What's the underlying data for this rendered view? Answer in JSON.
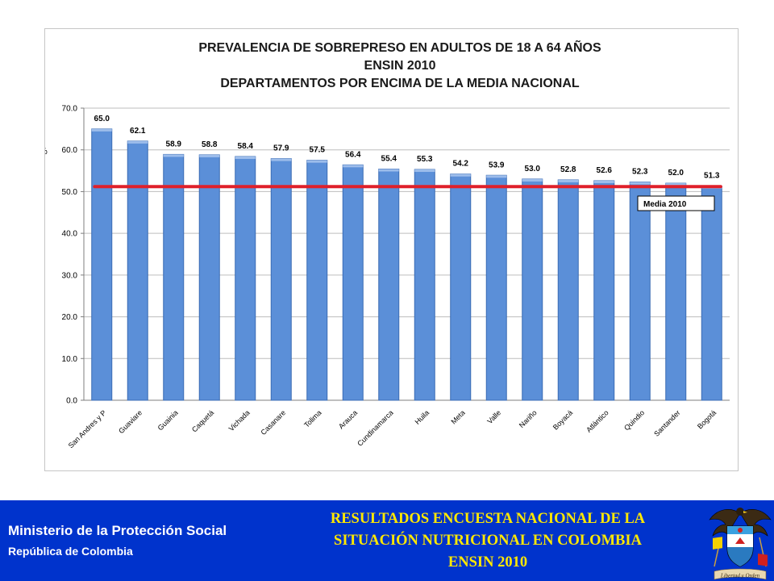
{
  "chart_data": {
    "type": "bar",
    "title": [
      "PREVALENCIA DE SOBREPRESO EN ADULTOS DE 18 A 64 AÑOS",
      "ENSIN 2010",
      "DEPARTAMENTOS POR ENCIMA DE LA MEDIA NACIONAL"
    ],
    "ylabel": "%",
    "xlabel": "",
    "ylim": [
      0,
      70
    ],
    "ytick_labels": [
      "0.0",
      "10.0",
      "20.0",
      "30.0",
      "40.0",
      "50.0",
      "60.0",
      "70.0"
    ],
    "grid": true,
    "categories": [
      "San Andres y P",
      "Guaviare",
      "Guainia",
      "Caquetá",
      "Vichada",
      "Casanare",
      "Tolima",
      "Arauca",
      "Cundinamarca",
      "Huila",
      "Meta",
      "Valle",
      "Nariño",
      "Boyacá",
      "Atlántico",
      "Quindio",
      "Santander",
      "Bogotá"
    ],
    "values": [
      65.0,
      62.1,
      58.9,
      58.8,
      58.4,
      57.9,
      57.5,
      56.4,
      55.4,
      55.3,
      54.2,
      53.9,
      53.0,
      52.8,
      52.6,
      52.3,
      52.0,
      51.3
    ],
    "value_labels": [
      "65.0",
      "62.1",
      "58.9",
      "58.8",
      "58.4",
      "57.9",
      "57.5",
      "56.4",
      "55.4",
      "55.3",
      "54.2",
      "53.9",
      "53.0",
      "52.8",
      "52.6",
      "52.3",
      "52.0",
      "51.3"
    ],
    "reference_line": {
      "label": "Media 2010",
      "value": 51.2
    },
    "colors": {
      "bar": "#5b8fd8",
      "bar_edge": "#3a6bb4",
      "line": "#e0202a"
    }
  },
  "footer": {
    "ministry": "Ministerio de la Protección Social",
    "republic": "República de Colombia",
    "title_lines": [
      "RESULTADOS ENCUESTA NACIONAL DE LA",
      "SITUACIÓN NUTRICIONAL EN COLOMBIA",
      "ENSIN 2010"
    ],
    "emblem_motto": "Libertad y Orden",
    "background_color": "#0033cc",
    "title_color": "#ffe800"
  }
}
